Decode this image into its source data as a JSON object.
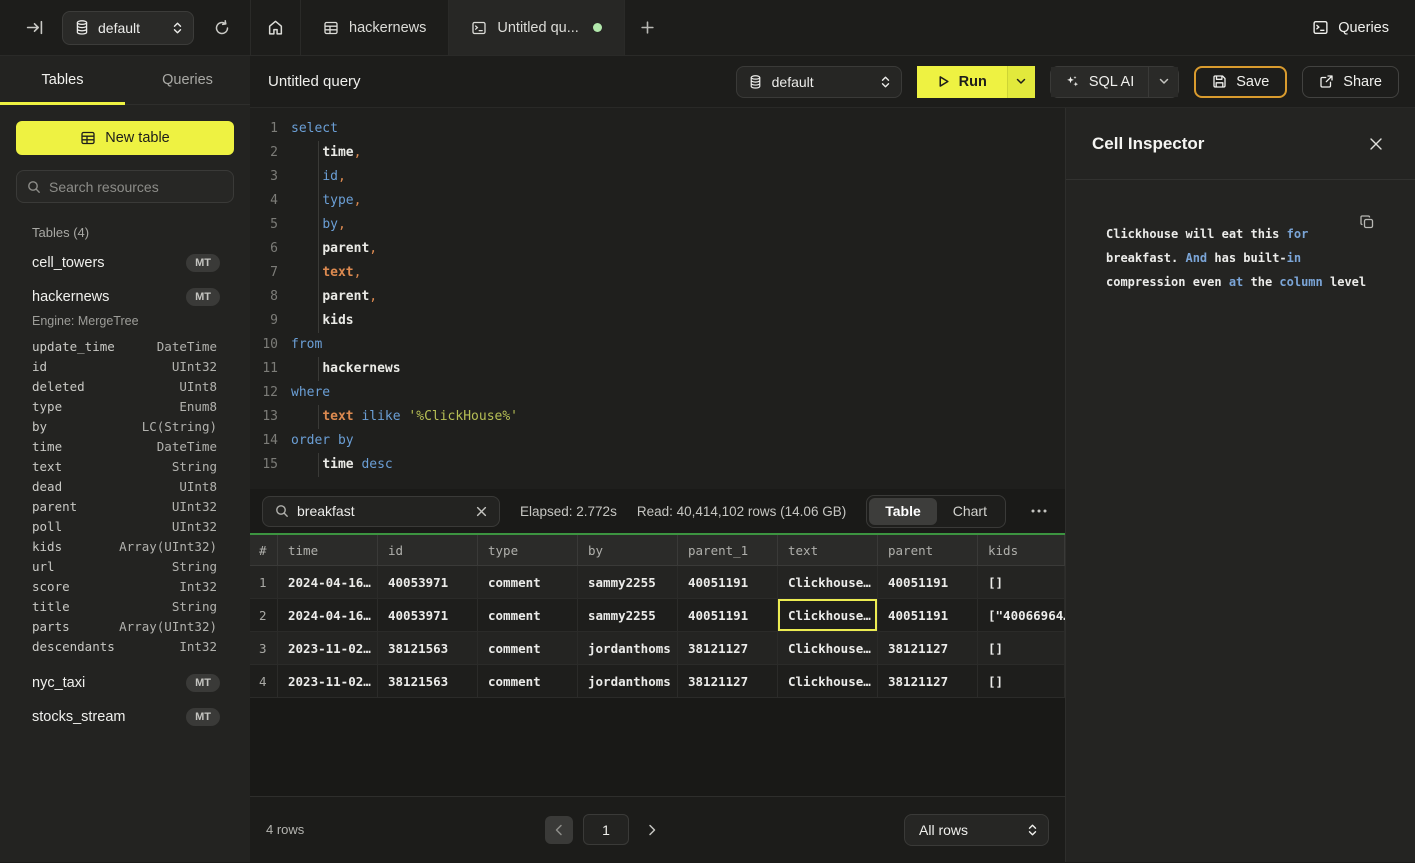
{
  "topbar": {
    "database_selector": "default",
    "tabs": [
      {
        "id": "home",
        "icon": "home-icon"
      },
      {
        "id": "hackernews",
        "label": "hackernews",
        "icon": "table-icon"
      },
      {
        "id": "untitled",
        "label": "Untitled qu...",
        "icon": "terminal-icon",
        "active": true,
        "unsaved": true
      }
    ],
    "queries_label": "Queries"
  },
  "sidebar": {
    "tabs": {
      "tables": "Tables",
      "queries": "Queries"
    },
    "new_table_label": "New table",
    "search_placeholder": "Search resources",
    "section_label": "Tables (4)",
    "tables": [
      {
        "name": "cell_towers",
        "badge": "MT"
      },
      {
        "name": "hackernews",
        "badge": "MT",
        "engine": "Engine: MergeTree",
        "columns": [
          {
            "name": "update_time",
            "type": "DateTime"
          },
          {
            "name": "id",
            "type": "UInt32"
          },
          {
            "name": "deleted",
            "type": "UInt8"
          },
          {
            "name": "type",
            "type": "Enum8"
          },
          {
            "name": "by",
            "type": "LC(String)"
          },
          {
            "name": "time",
            "type": "DateTime"
          },
          {
            "name": "text",
            "type": "String"
          },
          {
            "name": "dead",
            "type": "UInt8"
          },
          {
            "name": "parent",
            "type": "UInt32"
          },
          {
            "name": "poll",
            "type": "UInt32"
          },
          {
            "name": "kids",
            "type": "Array(UInt32)"
          },
          {
            "name": "url",
            "type": "String"
          },
          {
            "name": "score",
            "type": "Int32"
          },
          {
            "name": "title",
            "type": "String"
          },
          {
            "name": "parts",
            "type": "Array(UInt32)"
          },
          {
            "name": "descendants",
            "type": "Int32"
          }
        ]
      },
      {
        "name": "nyc_taxi",
        "badge": "MT"
      },
      {
        "name": "stocks_stream",
        "badge": "MT"
      }
    ]
  },
  "query_header": {
    "title": "Untitled query",
    "database": "default",
    "run_label": "Run",
    "sql_ai_label": "SQL AI",
    "save_label": "Save",
    "share_label": "Share"
  },
  "editor": {
    "lines": [
      {
        "n": "1",
        "ind": false,
        "tokens": [
          {
            "t": "select",
            "c": "kw"
          }
        ]
      },
      {
        "n": "2",
        "ind": true,
        "tokens": [
          {
            "t": "    ",
            "c": "pl"
          },
          {
            "t": "time",
            "c": "id"
          },
          {
            "t": ",",
            "c": "pu"
          }
        ]
      },
      {
        "n": "3",
        "ind": true,
        "tokens": [
          {
            "t": "    ",
            "c": "pl"
          },
          {
            "t": "id",
            "c": "kw"
          },
          {
            "t": ",",
            "c": "pu"
          }
        ]
      },
      {
        "n": "4",
        "ind": true,
        "tokens": [
          {
            "t": "    ",
            "c": "pl"
          },
          {
            "t": "type",
            "c": "kw"
          },
          {
            "t": ",",
            "c": "pu"
          }
        ]
      },
      {
        "n": "5",
        "ind": true,
        "tokens": [
          {
            "t": "    ",
            "c": "pl"
          },
          {
            "t": "by",
            "c": "kw"
          },
          {
            "t": ",",
            "c": "pu"
          }
        ]
      },
      {
        "n": "6",
        "ind": true,
        "tokens": [
          {
            "t": "    ",
            "c": "pl"
          },
          {
            "t": "parent",
            "c": "id"
          },
          {
            "t": ",",
            "c": "pu"
          }
        ]
      },
      {
        "n": "7",
        "ind": true,
        "tokens": [
          {
            "t": "    ",
            "c": "pl"
          },
          {
            "t": "text",
            "c": "fn"
          },
          {
            "t": ",",
            "c": "pu"
          }
        ]
      },
      {
        "n": "8",
        "ind": true,
        "tokens": [
          {
            "t": "    ",
            "c": "pl"
          },
          {
            "t": "parent",
            "c": "id"
          },
          {
            "t": ",",
            "c": "pu"
          }
        ]
      },
      {
        "n": "9",
        "ind": true,
        "tokens": [
          {
            "t": "    ",
            "c": "pl"
          },
          {
            "t": "kids",
            "c": "id"
          }
        ]
      },
      {
        "n": "10",
        "ind": false,
        "tokens": [
          {
            "t": "from",
            "c": "kw"
          }
        ]
      },
      {
        "n": "11",
        "ind": true,
        "tokens": [
          {
            "t": "    ",
            "c": "pl"
          },
          {
            "t": "hackernews",
            "c": "id"
          }
        ]
      },
      {
        "n": "12",
        "ind": false,
        "tokens": [
          {
            "t": "where",
            "c": "kw"
          }
        ]
      },
      {
        "n": "13",
        "ind": true,
        "tokens": [
          {
            "t": "    ",
            "c": "pl"
          },
          {
            "t": "text",
            "c": "fn"
          },
          {
            "t": " ",
            "c": "pl"
          },
          {
            "t": "ilike",
            "c": "kw"
          },
          {
            "t": " ",
            "c": "pl"
          },
          {
            "t": "'%ClickHouse%'",
            "c": "str"
          }
        ]
      },
      {
        "n": "14",
        "ind": false,
        "tokens": [
          {
            "t": "order by",
            "c": "kw"
          }
        ]
      },
      {
        "n": "15",
        "ind": true,
        "tokens": [
          {
            "t": "    ",
            "c": "pl"
          },
          {
            "t": "time",
            "c": "id"
          },
          {
            "t": " ",
            "c": "pl"
          },
          {
            "t": "desc",
            "c": "kw"
          }
        ]
      }
    ]
  },
  "results": {
    "search_value": "breakfast",
    "elapsed": "Elapsed: 2.772s",
    "read": "Read: 40,414,102 rows (14.06 GB)",
    "view_toggle": {
      "table": "Table",
      "chart": "Chart",
      "active": "Table"
    },
    "table": {
      "columns": [
        "#",
        "time",
        "id",
        "type",
        "by",
        "parent_1",
        "text",
        "parent",
        "kids"
      ],
      "rows": [
        [
          "1",
          "2024-04-16…",
          "40053971",
          "comment",
          "sammy2255",
          "40051191",
          "Clickhouse…",
          "40051191",
          "[]"
        ],
        [
          "2",
          "2024-04-16…",
          "40053971",
          "comment",
          "sammy2255",
          "40051191",
          "Clickhouse…",
          "40051191",
          "[\"40066964…"
        ],
        [
          "3",
          "2023-11-02…",
          "38121563",
          "comment",
          "jordanthoms",
          "38121127",
          "Clickhouse…",
          "38121127",
          "[]"
        ],
        [
          "4",
          "2023-11-02…",
          "38121563",
          "comment",
          "jordanthoms",
          "38121127",
          "Clickhouse…",
          "38121127",
          "[]"
        ]
      ],
      "selected_cell": {
        "row": 2,
        "column": "text"
      }
    },
    "footer": {
      "row_count": "4 rows",
      "page": "1",
      "page_size": "All rows"
    }
  },
  "cell_inspector": {
    "title": "Cell Inspector",
    "segments": [
      {
        "t": "Clickhouse will eat this ",
        "c": "pl"
      },
      {
        "t": "for",
        "c": "kw"
      },
      {
        "t": " breakfast. ",
        "c": "pl"
      },
      {
        "t": "And",
        "c": "kw"
      },
      {
        "t": " has built-",
        "c": "pl"
      },
      {
        "t": "in",
        "c": "kw"
      },
      {
        "t": " compression even ",
        "c": "pl"
      },
      {
        "t": "at",
        "c": "kw"
      },
      {
        "t": " the ",
        "c": "pl"
      },
      {
        "t": "column",
        "c": "kw"
      },
      {
        "t": " level",
        "c": "pl"
      }
    ]
  },
  "colors": {
    "accent_yellow": "#eef242",
    "save_border_amber": "#d99b2e",
    "table_header_green": "#3c9440",
    "unsaved_dot_green": "#b2e8ac",
    "selected_cell_yellow": "#ecec52",
    "code_keyword_blue": "#6b9fd6",
    "code_identifier_orange": "#dd8a50",
    "code_string_green": "#b6bf55"
  }
}
